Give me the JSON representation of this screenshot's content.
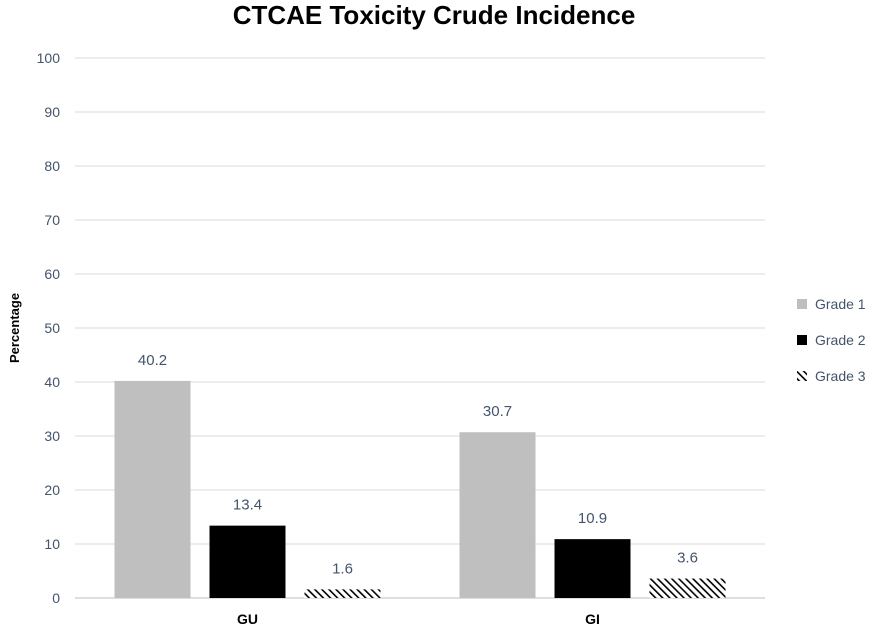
{
  "chart_data": {
    "type": "bar",
    "title": "CTCAE Toxicity Crude Incidence",
    "xlabel": "",
    "ylabel": "Percentage",
    "categories": [
      "GU",
      "GI"
    ],
    "ylim": [
      0,
      100
    ],
    "yticks": [
      0,
      10,
      20,
      30,
      40,
      50,
      60,
      70,
      80,
      90,
      100
    ],
    "grid": true,
    "legend_position": "right",
    "series": [
      {
        "name": "Grade 1",
        "values": [
          40.2,
          30.7
        ],
        "labels": [
          "40.2",
          "30.7"
        ],
        "color": "#bfbfbf",
        "fill": "solid"
      },
      {
        "name": "Grade 2",
        "values": [
          13.4,
          10.9
        ],
        "labels": [
          "13.4",
          "10.9"
        ],
        "color": "#000000",
        "fill": "solid"
      },
      {
        "name": "Grade 3",
        "values": [
          1.6,
          3.6
        ],
        "labels": [
          "1.6",
          "3.6"
        ],
        "color": "#000000",
        "fill": "hatched"
      }
    ]
  }
}
